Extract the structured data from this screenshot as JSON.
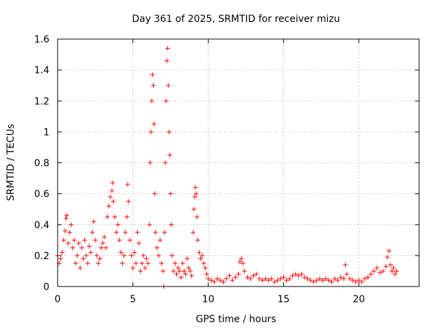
{
  "chart_data": {
    "type": "scatter",
    "title": "Day 361 of 2025, SRMTID for receiver mizu",
    "xlabel": "GPS time / hours",
    "ylabel": "SRMTID / TECUs",
    "xlim": [
      0,
      24
    ],
    "ylim": [
      0,
      1.6
    ],
    "xticks": [
      0,
      5,
      10,
      15,
      20
    ],
    "xtick_labels": [
      "0",
      "5",
      "10",
      "15",
      "20"
    ],
    "yticks": [
      0,
      0.2,
      0.4,
      0.6,
      0.8,
      1.0,
      1.2,
      1.4,
      1.6
    ],
    "ytick_labels": [
      "0",
      "0.2",
      "0.4",
      "0.6",
      "0.8",
      "1",
      "1.2",
      "1.4",
      "1.6"
    ],
    "grid": true,
    "marker": "plus",
    "marker_color": "#ff0000",
    "series": [
      {
        "name": "SRMTID",
        "points": [
          [
            0.0,
            0.2
          ],
          [
            0.1,
            0.15
          ],
          [
            0.2,
            0.18
          ],
          [
            0.3,
            0.22
          ],
          [
            0.4,
            0.3
          ],
          [
            0.5,
            0.36
          ],
          [
            0.55,
            0.44
          ],
          [
            0.6,
            0.46
          ],
          [
            0.7,
            0.28
          ],
          [
            0.8,
            0.35
          ],
          [
            0.9,
            0.4
          ],
          [
            1.0,
            0.25
          ],
          [
            1.1,
            0.3
          ],
          [
            1.2,
            0.15
          ],
          [
            1.3,
            0.2
          ],
          [
            1.4,
            0.28
          ],
          [
            1.5,
            0.12
          ],
          [
            1.6,
            0.25
          ],
          [
            1.7,
            0.18
          ],
          [
            1.8,
            0.3
          ],
          [
            1.9,
            0.2
          ],
          [
            2.0,
            0.15
          ],
          [
            2.1,
            0.26
          ],
          [
            2.2,
            0.22
          ],
          [
            2.3,
            0.35
          ],
          [
            2.4,
            0.42
          ],
          [
            2.5,
            0.3
          ],
          [
            2.6,
            0.2
          ],
          [
            2.7,
            0.15
          ],
          [
            2.8,
            0.18
          ],
          [
            2.9,
            0.25
          ],
          [
            3.0,
            0.28
          ],
          [
            3.1,
            0.32
          ],
          [
            3.2,
            0.25
          ],
          [
            3.3,
            0.45
          ],
          [
            3.4,
            0.52
          ],
          [
            3.5,
            0.58
          ],
          [
            3.6,
            0.62
          ],
          [
            3.65,
            0.67
          ],
          [
            3.7,
            0.55
          ],
          [
            3.8,
            0.45
          ],
          [
            3.9,
            0.35
          ],
          [
            4.0,
            0.4
          ],
          [
            4.1,
            0.3
          ],
          [
            4.2,
            0.22
          ],
          [
            4.3,
            0.15
          ],
          [
            4.4,
            0.2
          ],
          [
            4.5,
            0.35
          ],
          [
            4.6,
            0.45
          ],
          [
            4.65,
            0.66
          ],
          [
            4.7,
            0.55
          ],
          [
            4.8,
            0.3
          ],
          [
            4.9,
            0.2
          ],
          [
            5.0,
            0.12
          ],
          [
            5.1,
            0.22
          ],
          [
            5.2,
            0.15
          ],
          [
            5.3,
            0.35
          ],
          [
            5.4,
            0.28
          ],
          [
            5.5,
            0.1
          ],
          [
            5.6,
            0.15
          ],
          [
            5.7,
            0.2
          ],
          [
            5.8,
            0.12
          ],
          [
            5.9,
            0.18
          ],
          [
            6.0,
            0.15
          ],
          [
            6.1,
            0.4
          ],
          [
            6.15,
            0.8
          ],
          [
            6.2,
            1.0
          ],
          [
            6.25,
            1.2
          ],
          [
            6.3,
            1.37
          ],
          [
            6.35,
            1.3
          ],
          [
            6.4,
            1.05
          ],
          [
            6.45,
            0.6
          ],
          [
            6.5,
            0.35
          ],
          [
            6.6,
            0.25
          ],
          [
            6.7,
            0.2
          ],
          [
            6.8,
            0.3
          ],
          [
            6.9,
            0.15
          ],
          [
            7.0,
            0.1
          ],
          [
            7.05,
            0.0
          ],
          [
            7.1,
            0.35
          ],
          [
            7.15,
            0.8
          ],
          [
            7.2,
            1.2
          ],
          [
            7.25,
            1.46
          ],
          [
            7.3,
            1.54
          ],
          [
            7.35,
            1.3
          ],
          [
            7.4,
            1.0
          ],
          [
            7.45,
            0.85
          ],
          [
            7.5,
            0.6
          ],
          [
            7.55,
            0.4
          ],
          [
            7.6,
            0.2
          ],
          [
            7.7,
            0.1
          ],
          [
            7.8,
            0.15
          ],
          [
            7.9,
            0.08
          ],
          [
            8.0,
            0.12
          ],
          [
            8.1,
            0.1
          ],
          [
            8.2,
            0.06
          ],
          [
            8.3,
            0.15
          ],
          [
            8.4,
            0.1
          ],
          [
            8.5,
            0.08
          ],
          [
            8.6,
            0.18
          ],
          [
            8.7,
            0.12
          ],
          [
            8.8,
            0.1
          ],
          [
            8.9,
            0.07
          ],
          [
            9.0,
            0.35
          ],
          [
            9.05,
            0.5
          ],
          [
            9.1,
            0.58
          ],
          [
            9.15,
            0.64
          ],
          [
            9.2,
            0.6
          ],
          [
            9.25,
            0.45
          ],
          [
            9.3,
            0.3
          ],
          [
            9.4,
            0.22
          ],
          [
            9.5,
            0.18
          ],
          [
            9.6,
            0.2
          ],
          [
            9.7,
            0.15
          ],
          [
            9.8,
            0.12
          ],
          [
            9.9,
            0.08
          ],
          [
            10.0,
            0.05
          ],
          [
            10.2,
            0.04
          ],
          [
            10.4,
            0.03
          ],
          [
            10.6,
            0.05
          ],
          [
            10.8,
            0.04
          ],
          [
            11.0,
            0.03
          ],
          [
            11.2,
            0.05
          ],
          [
            11.4,
            0.07
          ],
          [
            11.6,
            0.04
          ],
          [
            11.8,
            0.06
          ],
          [
            12.0,
            0.08
          ],
          [
            12.1,
            0.16
          ],
          [
            12.2,
            0.18
          ],
          [
            12.3,
            0.15
          ],
          [
            12.4,
            0.1
          ],
          [
            12.6,
            0.06
          ],
          [
            12.8,
            0.05
          ],
          [
            13.0,
            0.07
          ],
          [
            13.2,
            0.08
          ],
          [
            13.4,
            0.05
          ],
          [
            13.6,
            0.04
          ],
          [
            13.8,
            0.05
          ],
          [
            14.0,
            0.04
          ],
          [
            14.2,
            0.05
          ],
          [
            14.4,
            0.03
          ],
          [
            14.6,
            0.04
          ],
          [
            14.8,
            0.05
          ],
          [
            15.0,
            0.06
          ],
          [
            15.2,
            0.04
          ],
          [
            15.4,
            0.05
          ],
          [
            15.6,
            0.07
          ],
          [
            15.8,
            0.08
          ],
          [
            16.0,
            0.07
          ],
          [
            16.2,
            0.08
          ],
          [
            16.4,
            0.06
          ],
          [
            16.6,
            0.05
          ],
          [
            16.8,
            0.04
          ],
          [
            17.0,
            0.03
          ],
          [
            17.2,
            0.04
          ],
          [
            17.4,
            0.05
          ],
          [
            17.6,
            0.04
          ],
          [
            17.8,
            0.05
          ],
          [
            18.0,
            0.04
          ],
          [
            18.2,
            0.03
          ],
          [
            18.4,
            0.05
          ],
          [
            18.6,
            0.04
          ],
          [
            18.8,
            0.06
          ],
          [
            19.0,
            0.05
          ],
          [
            19.1,
            0.14
          ],
          [
            19.2,
            0.08
          ],
          [
            19.4,
            0.05
          ],
          [
            19.6,
            0.04
          ],
          [
            19.8,
            0.03
          ],
          [
            20.0,
            0.04
          ],
          [
            20.2,
            0.03
          ],
          [
            20.4,
            0.05
          ],
          [
            20.6,
            0.06
          ],
          [
            20.8,
            0.08
          ],
          [
            21.0,
            0.1
          ],
          [
            21.2,
            0.12
          ],
          [
            21.4,
            0.09
          ],
          [
            21.6,
            0.1
          ],
          [
            21.8,
            0.13
          ],
          [
            21.9,
            0.19
          ],
          [
            22.0,
            0.23
          ],
          [
            22.1,
            0.14
          ],
          [
            22.2,
            0.1
          ],
          [
            22.3,
            0.12
          ],
          [
            22.4,
            0.08
          ],
          [
            22.5,
            0.1
          ]
        ]
      }
    ]
  }
}
